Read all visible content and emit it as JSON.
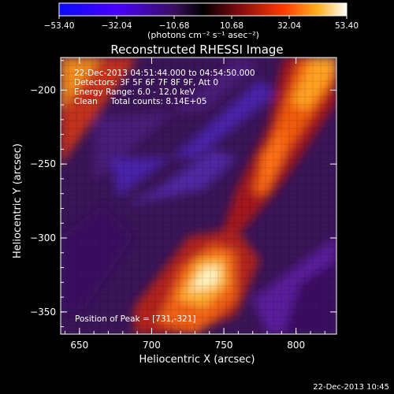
{
  "chart_data": {
    "type": "heatmap",
    "title": "Reconstructed RHESSI Image",
    "colorbar": {
      "ticks": [
        "-53.40",
        "-32.04",
        "-10.68",
        "10.68",
        "32.04",
        "53.40"
      ],
      "unit_label": "(photons cm⁻² s⁻¹ asec⁻²)",
      "range": [
        -53.4,
        53.4
      ]
    },
    "xlabel": "Heliocentric X (arcsec)",
    "ylabel": "Heliocentric Y (arcsec)",
    "xlim": [
      637,
      828
    ],
    "ylim": [
      -365,
      -178
    ],
    "xticks": [
      650,
      700,
      750,
      800
    ],
    "yticks": [
      -200,
      -250,
      -300,
      -350
    ],
    "annotations": [
      "22-Dec-2013 04:51:44.000 to 04:54:50.000",
      "Detectors: 3F 5F 6F 7F 8F 9F, Att 0",
      "Energy Range: 6.0 - 12.0 keV",
      "Clean     Total counts: 8.14E+05"
    ],
    "peak_label": "Position of Peak = [731,-321]",
    "peak": [
      731,
      -321
    ],
    "footer_timestamp": "22-Dec-2013 10:45"
  }
}
